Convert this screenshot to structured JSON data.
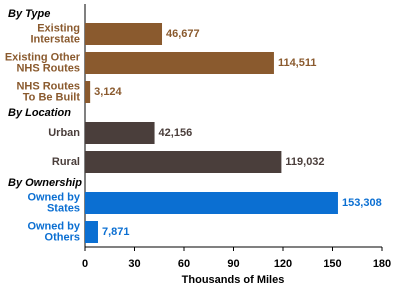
{
  "chart_data": {
    "type": "bar",
    "orientation": "horizontal",
    "x_label": "Thousands of Miles",
    "xlim": [
      0,
      180
    ],
    "xticks": [
      0,
      30,
      60,
      90,
      120,
      150,
      180
    ],
    "groups": [
      {
        "name": "By Type",
        "color": "#8a5a2e",
        "categories": [
          "Existing\nInterstate",
          "Existing Other\nNHS Routes",
          "NHS Routes\nTo Be Built"
        ],
        "values": [
          46.677,
          114.511,
          3.124
        ],
        "value_labels": [
          "46,677",
          "114,511",
          "3,124"
        ]
      },
      {
        "name": "By Location",
        "color": "#4a3e3b",
        "categories": [
          "Urban",
          "Rural"
        ],
        "values": [
          42.156,
          119.032
        ],
        "value_labels": [
          "42,156",
          "119,032"
        ]
      },
      {
        "name": "By Ownership",
        "color": "#0b6fd2",
        "categories": [
          "Owned by\nStates",
          "Owned by\nOthers"
        ],
        "values": [
          153.308,
          7.871
        ],
        "value_labels": [
          "153,308",
          "7,871"
        ]
      }
    ]
  }
}
